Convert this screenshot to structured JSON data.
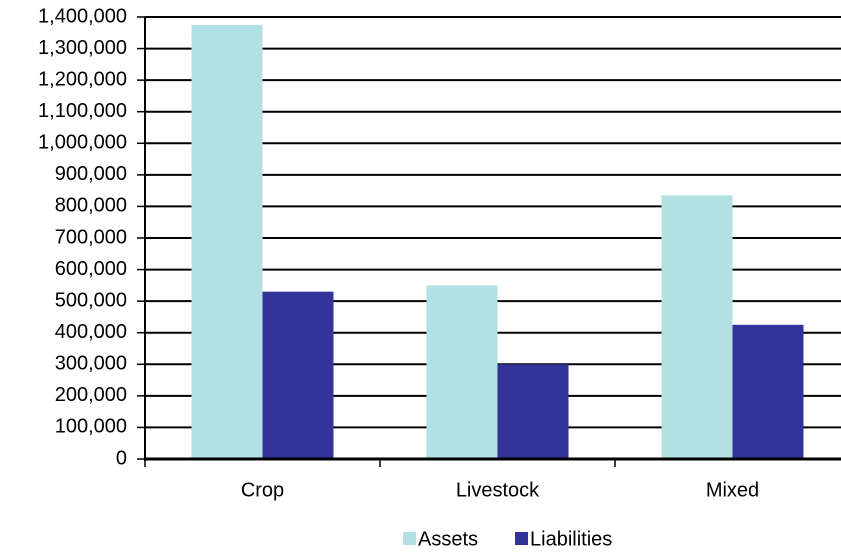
{
  "chart_data": {
    "type": "bar",
    "categories": [
      "Crop",
      "Livestock",
      "Mixed"
    ],
    "series": [
      {
        "name": "Assets",
        "color": "#b3e0e3",
        "values": [
          1375000,
          550000,
          835000
        ]
      },
      {
        "name": "Liabilities",
        "color": "#333399",
        "values": [
          530000,
          300000,
          425000
        ]
      }
    ],
    "ylim": [
      0,
      1400000
    ],
    "yticks": [
      0,
      {
        "value": 100000,
        "label": "100,000"
      },
      {
        "value": 200000,
        "label": "200,000"
      },
      {
        "value": 300000,
        "label": "300,000"
      },
      {
        "value": 400000,
        "label": "400,000"
      },
      {
        "value": 500000,
        "label": "500,000"
      },
      {
        "value": 600000,
        "label": "600,000"
      },
      {
        "value": 700000,
        "label": "700,000"
      },
      {
        "value": 800000,
        "label": "800,000"
      },
      {
        "value": 900000,
        "label": "900,000"
      },
      {
        "value": 1000000,
        "label": "1,000,000"
      },
      {
        "value": 1100000,
        "label": "1,100,000"
      },
      {
        "value": 1200000,
        "label": "1,200,000"
      },
      {
        "value": 1300000,
        "label": "1,300,000"
      },
      {
        "value": 1400000,
        "label": "1,400,000"
      }
    ],
    "grid": true,
    "legend": "bottom"
  }
}
